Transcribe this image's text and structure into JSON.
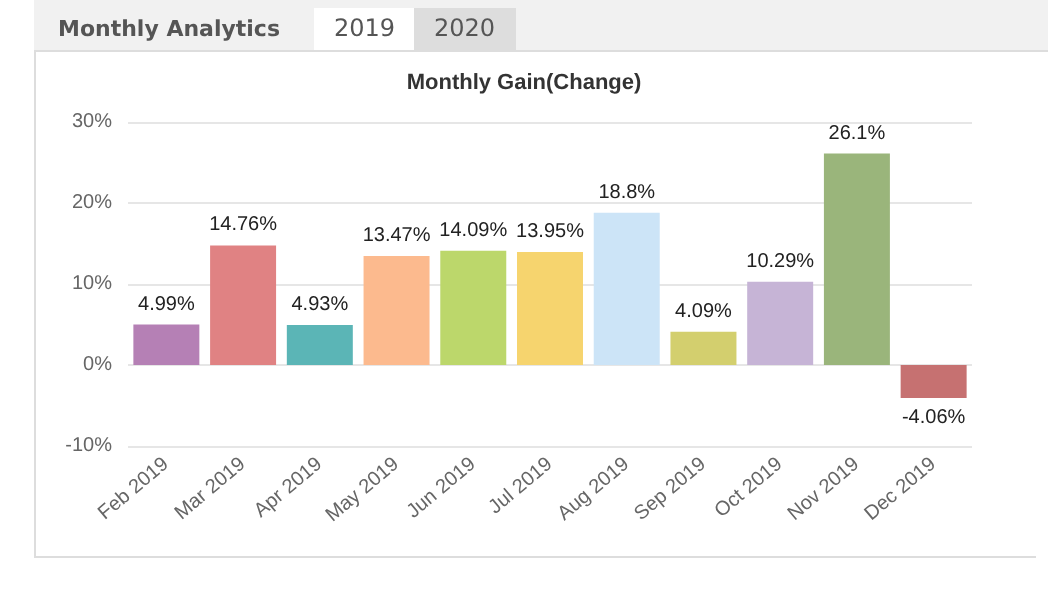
{
  "chart_data": {
    "type": "bar",
    "title": "Monthly Gain(Change)",
    "annotations": [
      "Monthly Analytics",
      "2019",
      "2020"
    ],
    "categories": [
      "Feb 2019",
      "Mar 2019",
      "Apr 2019",
      "May 2019",
      "Jun 2019",
      "Jul 2019",
      "Aug 2019",
      "Sep 2019",
      "Oct 2019",
      "Nov 2019",
      "Dec 2019"
    ],
    "values": [
      4.99,
      14.76,
      4.93,
      13.47,
      14.09,
      13.95,
      18.8,
      4.09,
      10.29,
      26.1,
      -4.06
    ],
    "value_labels": [
      "4.99%",
      "14.76%",
      "4.93%",
      "13.47%",
      "14.09%",
      "13.95%",
      "18.8%",
      "4.09%",
      "10.29%",
      "26.1%",
      "-4.06%"
    ],
    "colors": [
      "#b580b5",
      "#e08283",
      "#5bb5b6",
      "#fcba8e",
      "#bcd76b",
      "#f6d46e",
      "#cce4f7",
      "#d3cf6e",
      "#c6b4d6",
      "#9ab57b",
      "#c67171"
    ],
    "ylim": [
      -10,
      30
    ],
    "yticks": [
      {
        "value": -10,
        "label": "-10%"
      },
      {
        "value": 0,
        "label": "0%"
      },
      {
        "value": 10,
        "label": "10%"
      },
      {
        "value": 20,
        "label": "20%"
      },
      {
        "value": 30,
        "label": "30%"
      }
    ],
    "grid": "y"
  }
}
